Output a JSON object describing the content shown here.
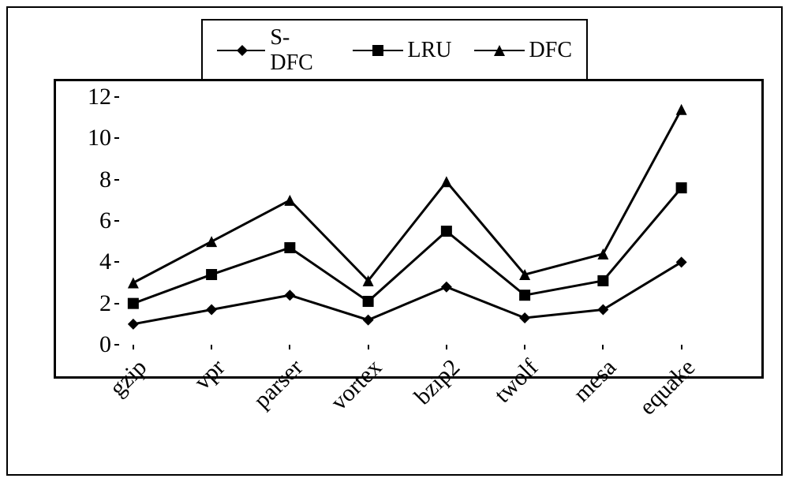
{
  "chart": {
    "type": "line",
    "background_color": "#ffffff",
    "line_color": "#000000",
    "axis_color": "#000000",
    "line_width": 3,
    "marker_size": 7,
    "font_family": "Times New Roman",
    "tick_fontsize": 30,
    "legend_fontsize": 28,
    "ylim": [
      0,
      12
    ],
    "ytick_step": 2,
    "categories": [
      "gzip",
      "vpr",
      "parser",
      "vortex",
      "bzip2",
      "twolf",
      "mesa",
      "equake"
    ],
    "series": [
      {
        "label": "S-DFC",
        "marker": "diamond",
        "values": [
          1.0,
          1.7,
          2.4,
          1.2,
          2.8,
          1.3,
          1.7,
          4.0
        ]
      },
      {
        "label": "LRU",
        "marker": "square",
        "values": [
          2.0,
          3.4,
          4.7,
          2.1,
          5.5,
          2.4,
          3.1,
          7.6
        ]
      },
      {
        "label": "DFC",
        "marker": "triangle",
        "values": [
          3.0,
          5.0,
          7.0,
          3.1,
          7.9,
          3.4,
          4.4,
          11.4
        ]
      }
    ]
  }
}
